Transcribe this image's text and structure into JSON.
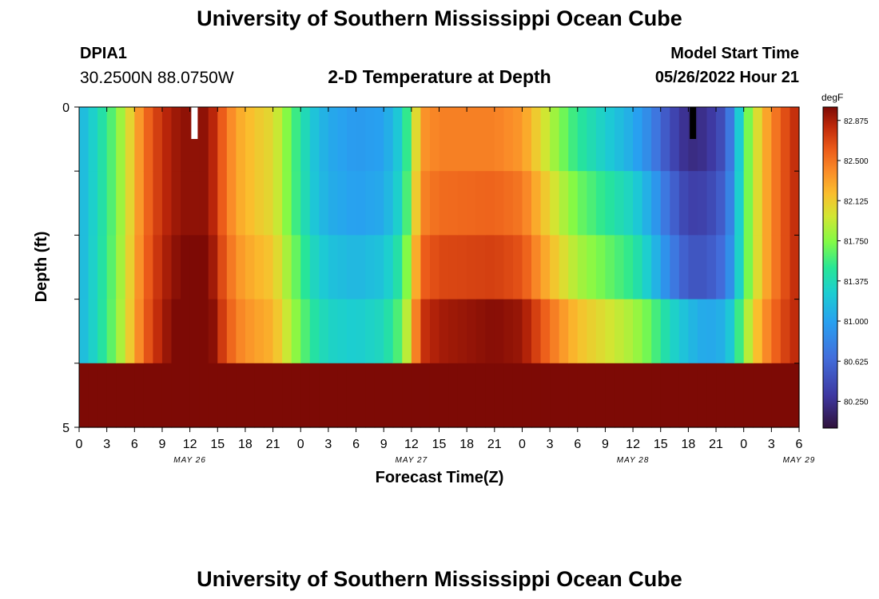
{
  "header": {
    "title": "University of Southern Mississippi Ocean Cube",
    "station": "DPIA1",
    "coords": "30.2500N  88.0750W",
    "subtitle": "2-D Temperature at Depth",
    "model_start_label": "Model Start Time",
    "model_start_value": "05/26/2022 Hour 21"
  },
  "footer": {
    "title": "University of Southern Mississippi Ocean Cube"
  },
  "chart_data": {
    "type": "heatmap",
    "title": "2-D Temperature at Depth",
    "xlabel": "Forecast Time(Z)",
    "ylabel": "Depth (ft)",
    "x_ticks": [
      "0",
      "3",
      "6",
      "9",
      "12",
      "15",
      "18",
      "21",
      "0",
      "3",
      "6",
      "9",
      "12",
      "15",
      "18",
      "21",
      "0",
      "3",
      "6",
      "9",
      "12",
      "15",
      "18",
      "21",
      "0",
      "3",
      "6"
    ],
    "date_labels": [
      {
        "label": "MAY 26",
        "hour": 12
      },
      {
        "label": "MAY 27",
        "hour": 36
      },
      {
        "label": "MAY 28",
        "hour": 60
      },
      {
        "label": "MAY 29",
        "hour": 78
      }
    ],
    "x_range_hours": [
      0,
      78
    ],
    "y_ticks": [
      "0",
      "5"
    ],
    "y_range_ft": [
      0,
      5
    ],
    "depth_levels": 5,
    "colorbar": {
      "unit": "degF",
      "labels": [
        "82.875",
        "82.500",
        "82.125",
        "81.750",
        "81.375",
        "81.000",
        "80.625",
        "80.250"
      ],
      "vmin": 80.0,
      "vmax": 83.0
    },
    "time_profile_keypoints": [
      [
        0,
        81.1
      ],
      [
        2,
        81.35
      ],
      [
        4,
        81.7
      ],
      [
        6,
        82.2
      ],
      [
        7,
        82.5
      ],
      [
        9,
        82.8
      ],
      [
        11,
        82.95
      ],
      [
        14,
        82.95
      ],
      [
        15.5,
        82.6
      ],
      [
        17,
        82.3
      ],
      [
        19,
        82.15
      ],
      [
        21,
        82.05
      ],
      [
        22.5,
        81.75
      ],
      [
        24,
        81.45
      ],
      [
        25.5,
        81.2
      ],
      [
        27,
        81.05
      ],
      [
        30,
        80.95
      ],
      [
        33,
        81.0
      ],
      [
        35,
        81.3
      ],
      [
        36,
        81.75
      ],
      [
        37,
        82.35
      ],
      [
        39,
        82.45
      ],
      [
        42,
        82.45
      ],
      [
        45,
        82.45
      ],
      [
        48,
        82.35
      ],
      [
        50,
        82.05
      ],
      [
        52,
        81.75
      ],
      [
        54,
        81.5
      ],
      [
        56,
        81.35
      ],
      [
        58,
        81.2
      ],
      [
        60,
        81.05
      ],
      [
        62,
        80.8
      ],
      [
        64,
        80.45
      ],
      [
        66,
        80.2
      ],
      [
        68,
        80.25
      ],
      [
        70,
        80.5
      ],
      [
        71,
        80.95
      ],
      [
        72,
        81.55
      ],
      [
        74,
        82.2
      ],
      [
        76,
        82.6
      ],
      [
        78,
        82.85
      ]
    ],
    "level_offsets": [
      [
        0,
        0,
        0,
        0,
        0
      ],
      [
        22,
        0,
        0,
        0.1,
        0.2
      ],
      [
        33,
        0,
        0.05,
        0.2,
        0.35
      ],
      [
        50,
        0,
        0.15,
        0.3,
        0.6
      ],
      [
        60,
        0,
        0.25,
        0.45,
        0.8
      ],
      [
        66,
        0,
        0.15,
        0.3,
        0.95
      ],
      [
        70,
        0,
        0.1,
        0.2,
        0.6
      ],
      [
        72,
        0,
        0,
        0,
        0.2
      ],
      [
        78,
        0,
        0,
        0,
        0
      ]
    ],
    "markers": [
      {
        "name": "min-marker",
        "hour": 12.5,
        "color": "#ffffff"
      },
      {
        "name": "max-marker",
        "hour": 66.5,
        "color": "#000000"
      }
    ]
  }
}
